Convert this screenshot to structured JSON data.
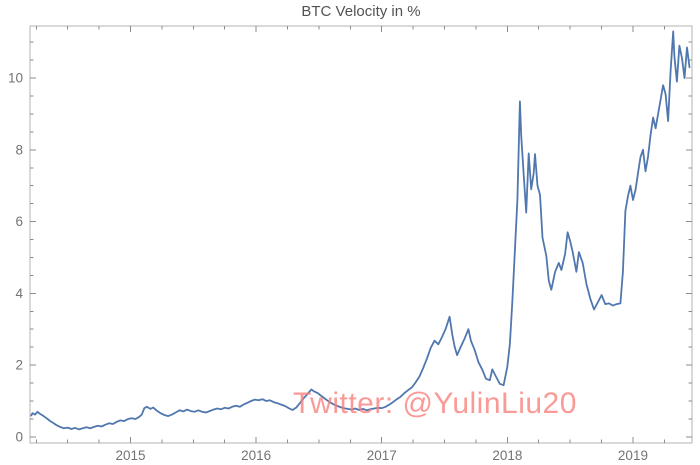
{
  "watermark": {
    "text": "Twitter: @YulinLiu20",
    "color": "#FA827D",
    "opacity": 0.8
  },
  "chart_data": {
    "type": "line",
    "title": "BTC Velocity in %",
    "xlabel": "",
    "ylabel": "",
    "xlim": [
      2014.2,
      2019.47
    ],
    "ylim": [
      -0.17,
      11.45
    ],
    "x_ticks": [
      2015,
      2016,
      2017,
      2018,
      2019
    ],
    "x_tick_labels": [
      "2015",
      "2016",
      "2017",
      "2018",
      "2019"
    ],
    "x_minor_step": 0.25,
    "y_ticks": [
      0,
      2,
      4,
      6,
      8,
      10
    ],
    "y_tick_labels": [
      "0",
      "2",
      "4",
      "6",
      "8",
      "10"
    ],
    "y_minor_step": 0.5,
    "grid": false,
    "legend": null,
    "frame": true,
    "line_color": "#5077AE",
    "frame_color": "#b3b3b3",
    "tick_color": "#8c8c8c",
    "label_color": "#737373",
    "series": [
      {
        "name": "BTC velocity (%)",
        "points": [
          [
            2014.21,
            0.6
          ],
          [
            2014.22,
            0.66
          ],
          [
            2014.24,
            0.62
          ],
          [
            2014.26,
            0.7
          ],
          [
            2014.28,
            0.64
          ],
          [
            2014.3,
            0.6
          ],
          [
            2014.32,
            0.55
          ],
          [
            2014.34,
            0.5
          ],
          [
            2014.36,
            0.44
          ],
          [
            2014.38,
            0.4
          ],
          [
            2014.41,
            0.33
          ],
          [
            2014.44,
            0.28
          ],
          [
            2014.47,
            0.24
          ],
          [
            2014.5,
            0.26
          ],
          [
            2014.53,
            0.22
          ],
          [
            2014.56,
            0.25
          ],
          [
            2014.59,
            0.21
          ],
          [
            2014.62,
            0.24
          ],
          [
            2014.65,
            0.27
          ],
          [
            2014.68,
            0.24
          ],
          [
            2014.71,
            0.28
          ],
          [
            2014.74,
            0.31
          ],
          [
            2014.77,
            0.29
          ],
          [
            2014.8,
            0.34
          ],
          [
            2014.83,
            0.38
          ],
          [
            2014.86,
            0.36
          ],
          [
            2014.89,
            0.42
          ],
          [
            2014.92,
            0.46
          ],
          [
            2014.95,
            0.44
          ],
          [
            2014.98,
            0.5
          ],
          [
            2015.01,
            0.52
          ],
          [
            2015.04,
            0.5
          ],
          [
            2015.07,
            0.56
          ],
          [
            2015.09,
            0.62
          ],
          [
            2015.11,
            0.8
          ],
          [
            2015.13,
            0.84
          ],
          [
            2015.16,
            0.78
          ],
          [
            2015.18,
            0.82
          ],
          [
            2015.21,
            0.73
          ],
          [
            2015.24,
            0.66
          ],
          [
            2015.27,
            0.61
          ],
          [
            2015.3,
            0.58
          ],
          [
            2015.33,
            0.62
          ],
          [
            2015.36,
            0.68
          ],
          [
            2015.39,
            0.74
          ],
          [
            2015.42,
            0.71
          ],
          [
            2015.45,
            0.76
          ],
          [
            2015.48,
            0.72
          ],
          [
            2015.51,
            0.7
          ],
          [
            2015.54,
            0.74
          ],
          [
            2015.57,
            0.7
          ],
          [
            2015.6,
            0.68
          ],
          [
            2015.63,
            0.72
          ],
          [
            2015.66,
            0.76
          ],
          [
            2015.69,
            0.79
          ],
          [
            2015.72,
            0.77
          ],
          [
            2015.75,
            0.81
          ],
          [
            2015.78,
            0.79
          ],
          [
            2015.81,
            0.84
          ],
          [
            2015.84,
            0.87
          ],
          [
            2015.87,
            0.84
          ],
          [
            2015.9,
            0.9
          ],
          [
            2015.93,
            0.95
          ],
          [
            2015.96,
            1.0
          ],
          [
            2015.99,
            1.04
          ],
          [
            2016.02,
            1.02
          ],
          [
            2016.05,
            1.05
          ],
          [
            2016.08,
            1.0
          ],
          [
            2016.11,
            1.02
          ],
          [
            2016.14,
            0.97
          ],
          [
            2016.17,
            0.94
          ],
          [
            2016.2,
            0.9
          ],
          [
            2016.23,
            0.86
          ],
          [
            2016.26,
            0.8
          ],
          [
            2016.29,
            0.75
          ],
          [
            2016.32,
            0.82
          ],
          [
            2016.35,
            0.95
          ],
          [
            2016.38,
            1.08
          ],
          [
            2016.41,
            1.2
          ],
          [
            2016.44,
            1.32
          ],
          [
            2016.46,
            1.27
          ],
          [
            2016.49,
            1.22
          ],
          [
            2016.52,
            1.14
          ],
          [
            2016.55,
            1.06
          ],
          [
            2016.58,
            0.98
          ],
          [
            2016.61,
            0.92
          ],
          [
            2016.64,
            0.87
          ],
          [
            2016.67,
            0.83
          ],
          [
            2016.7,
            0.8
          ],
          [
            2016.73,
            0.78
          ],
          [
            2016.76,
            0.76
          ],
          [
            2016.79,
            0.79
          ],
          [
            2016.82,
            0.75
          ],
          [
            2016.85,
            0.78
          ],
          [
            2016.88,
            0.74
          ],
          [
            2016.91,
            0.77
          ],
          [
            2016.94,
            0.79
          ],
          [
            2016.97,
            0.81
          ],
          [
            2017.0,
            0.8
          ],
          [
            2017.03,
            0.84
          ],
          [
            2017.06,
            0.9
          ],
          [
            2017.09,
            0.97
          ],
          [
            2017.12,
            1.05
          ],
          [
            2017.15,
            1.12
          ],
          [
            2017.18,
            1.22
          ],
          [
            2017.21,
            1.3
          ],
          [
            2017.24,
            1.38
          ],
          [
            2017.27,
            1.52
          ],
          [
            2017.3,
            1.68
          ],
          [
            2017.33,
            1.92
          ],
          [
            2017.36,
            2.18
          ],
          [
            2017.39,
            2.48
          ],
          [
            2017.42,
            2.68
          ],
          [
            2017.45,
            2.58
          ],
          [
            2017.48,
            2.78
          ],
          [
            2017.51,
            3.02
          ],
          [
            2017.54,
            3.35
          ],
          [
            2017.56,
            2.88
          ],
          [
            2017.58,
            2.52
          ],
          [
            2017.6,
            2.28
          ],
          [
            2017.63,
            2.52
          ],
          [
            2017.66,
            2.74
          ],
          [
            2017.69,
            3.0
          ],
          [
            2017.71,
            2.68
          ],
          [
            2017.74,
            2.42
          ],
          [
            2017.77,
            2.08
          ],
          [
            2017.8,
            1.88
          ],
          [
            2017.83,
            1.62
          ],
          [
            2017.86,
            1.58
          ],
          [
            2017.88,
            1.88
          ],
          [
            2017.91,
            1.68
          ],
          [
            2017.94,
            1.48
          ],
          [
            2017.97,
            1.44
          ],
          [
            2018.0,
            1.95
          ],
          [
            2018.02,
            2.6
          ],
          [
            2018.04,
            3.8
          ],
          [
            2018.06,
            5.2
          ],
          [
            2018.08,
            6.6
          ],
          [
            2018.1,
            9.35
          ],
          [
            2018.11,
            8.4
          ],
          [
            2018.13,
            7.3
          ],
          [
            2018.15,
            6.25
          ],
          [
            2018.17,
            7.9
          ],
          [
            2018.19,
            6.9
          ],
          [
            2018.21,
            7.35
          ],
          [
            2018.22,
            7.88
          ],
          [
            2018.24,
            7.0
          ],
          [
            2018.26,
            6.75
          ],
          [
            2018.28,
            5.55
          ],
          [
            2018.31,
            5.05
          ],
          [
            2018.33,
            4.35
          ],
          [
            2018.35,
            4.1
          ],
          [
            2018.38,
            4.6
          ],
          [
            2018.41,
            4.85
          ],
          [
            2018.43,
            4.65
          ],
          [
            2018.46,
            5.1
          ],
          [
            2018.48,
            5.7
          ],
          [
            2018.5,
            5.45
          ],
          [
            2018.52,
            5.15
          ],
          [
            2018.55,
            4.6
          ],
          [
            2018.57,
            5.15
          ],
          [
            2018.6,
            4.85
          ],
          [
            2018.63,
            4.25
          ],
          [
            2018.66,
            3.85
          ],
          [
            2018.69,
            3.55
          ],
          [
            2018.72,
            3.75
          ],
          [
            2018.75,
            3.95
          ],
          [
            2018.78,
            3.7
          ],
          [
            2018.81,
            3.72
          ],
          [
            2018.84,
            3.66
          ],
          [
            2018.87,
            3.7
          ],
          [
            2018.9,
            3.72
          ],
          [
            2018.92,
            4.6
          ],
          [
            2018.94,
            6.3
          ],
          [
            2018.96,
            6.7
          ],
          [
            2018.98,
            7.0
          ],
          [
            2019.0,
            6.6
          ],
          [
            2019.02,
            6.88
          ],
          [
            2019.04,
            7.35
          ],
          [
            2019.06,
            7.8
          ],
          [
            2019.08,
            8.0
          ],
          [
            2019.1,
            7.4
          ],
          [
            2019.12,
            7.8
          ],
          [
            2019.14,
            8.4
          ],
          [
            2019.16,
            8.9
          ],
          [
            2019.18,
            8.6
          ],
          [
            2019.2,
            9.0
          ],
          [
            2019.22,
            9.4
          ],
          [
            2019.24,
            9.8
          ],
          [
            2019.26,
            9.55
          ],
          [
            2019.28,
            8.8
          ],
          [
            2019.3,
            10.2
          ],
          [
            2019.32,
            11.3
          ],
          [
            2019.33,
            10.6
          ],
          [
            2019.35,
            9.9
          ],
          [
            2019.37,
            10.9
          ],
          [
            2019.39,
            10.55
          ],
          [
            2019.41,
            10.0
          ],
          [
            2019.43,
            10.85
          ],
          [
            2019.45,
            10.3
          ]
        ]
      }
    ]
  }
}
